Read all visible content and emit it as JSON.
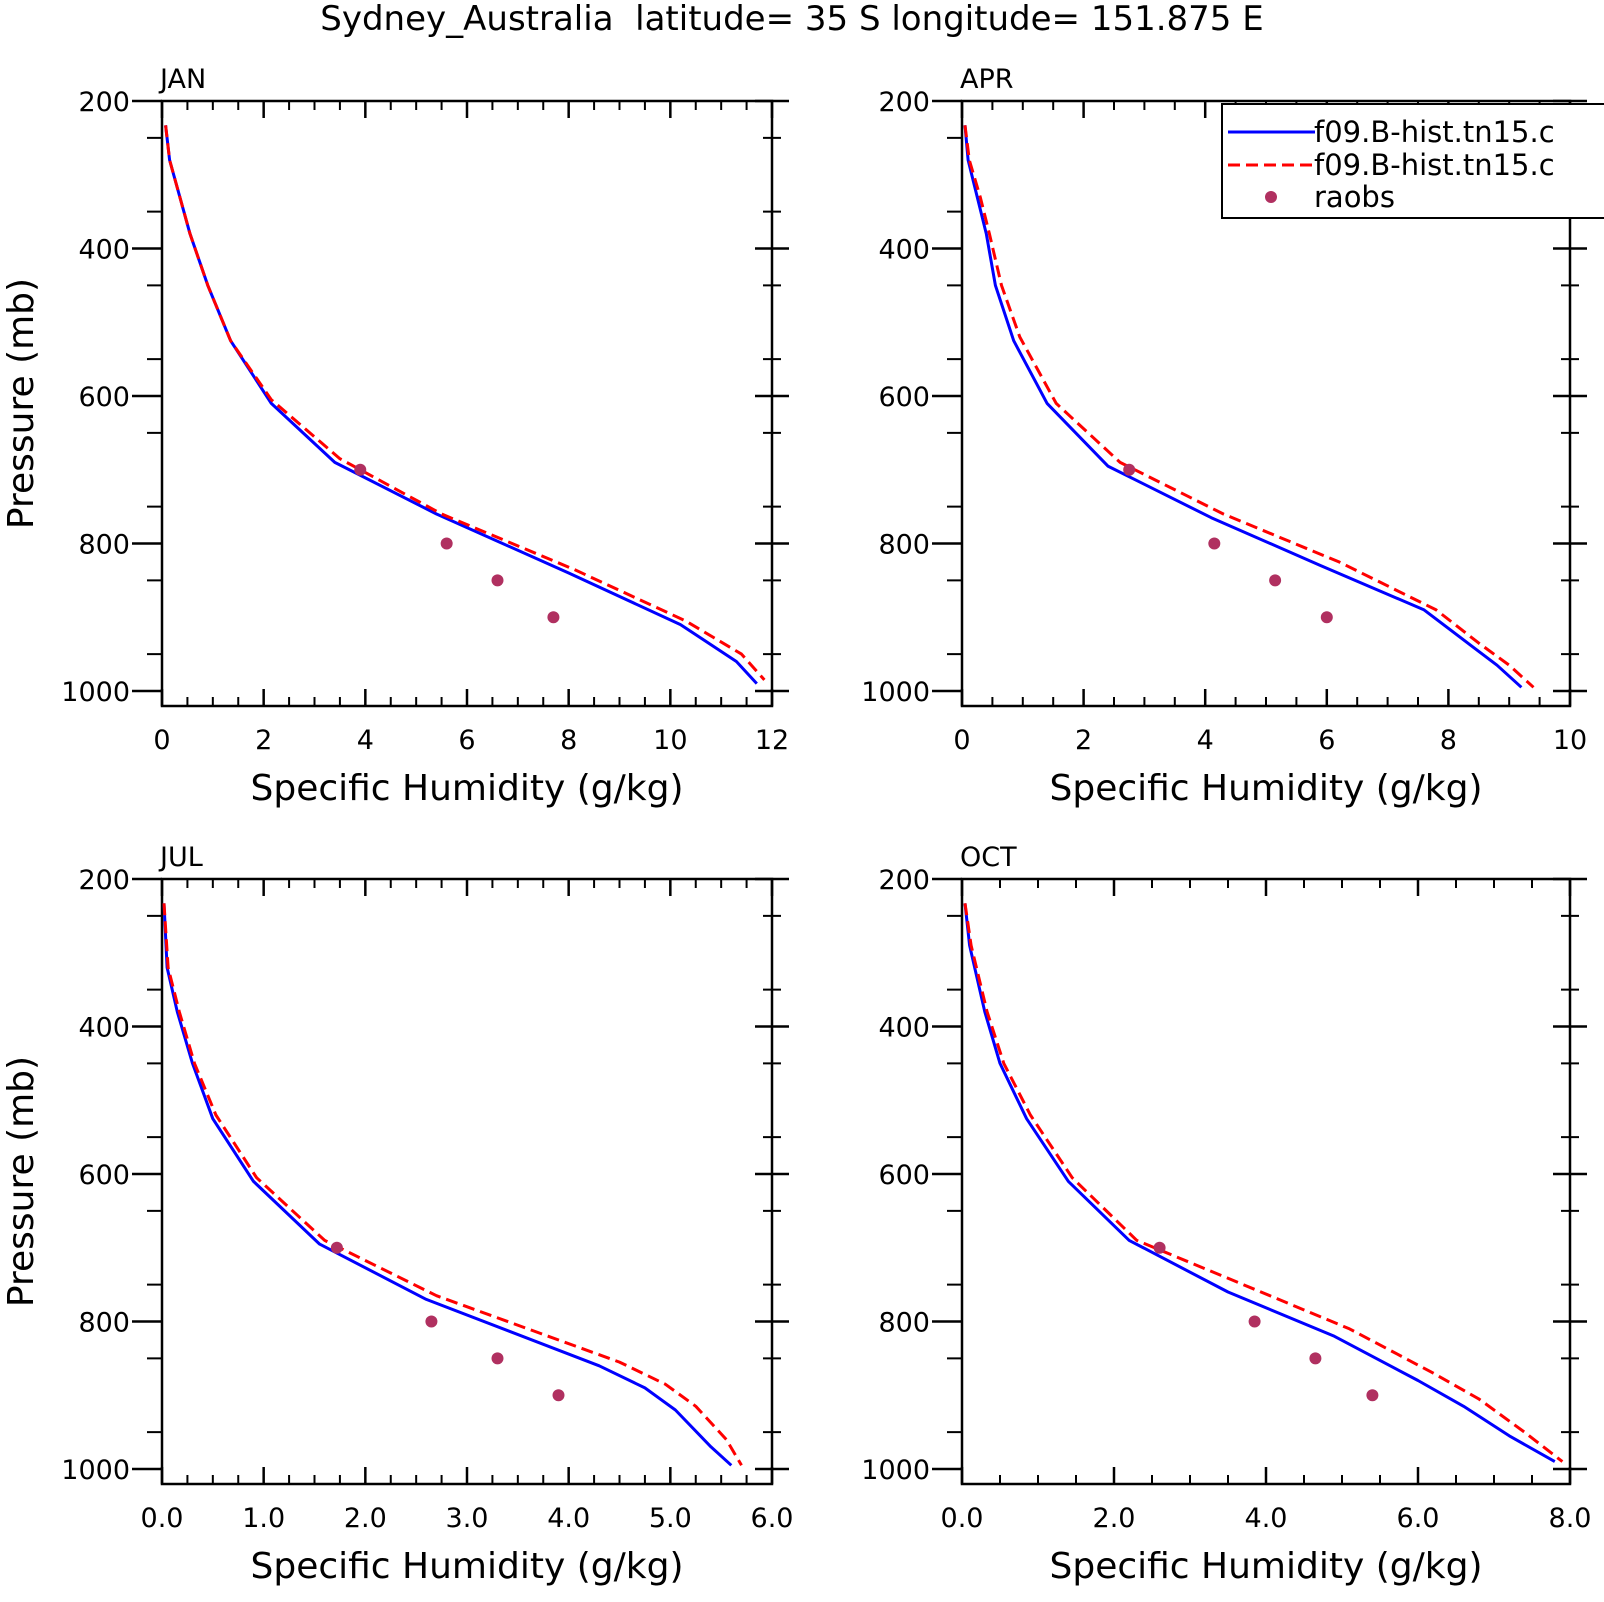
{
  "figure_title": "Sydney_Australia  latitude= 35 S longitude= 151.875 E",
  "legend": {
    "entries": [
      {
        "label": "f09.B-hist.tn15.c",
        "style": "solid",
        "color": "#0000ff"
      },
      {
        "label": "f09.B-hist.tn15.c",
        "style": "dashed",
        "color": "#ff0000"
      },
      {
        "label": "raobs",
        "style": "marker",
        "color": "#b03060"
      }
    ]
  },
  "chart_data": [
    {
      "type": "line",
      "title": "JAN",
      "xlabel": "Specific Humidity (g/kg)",
      "ylabel": "Pressure (mb)",
      "xlim": [
        0,
        12
      ],
      "ylim": [
        1000,
        200
      ],
      "y_inverted": true,
      "xticks": [
        0,
        2,
        4,
        6,
        8,
        10,
        12
      ],
      "xtick_labels": [
        "0",
        "2",
        "4",
        "6",
        "8",
        "10",
        "12"
      ],
      "yticks": [
        200,
        400,
        600,
        800,
        1000
      ],
      "ytick_labels": [
        "200",
        "400",
        "600",
        "800",
        "1000"
      ],
      "series": [
        {
          "style": "solid",
          "color": "#0000ff",
          "x": [
            0.07,
            0.15,
            0.35,
            0.55,
            0.9,
            1.35,
            2.15,
            3.4,
            5.4,
            8.0,
            10.2,
            11.3,
            11.7
          ],
          "y": [
            233,
            280,
            330,
            380,
            450,
            525,
            610,
            690,
            760,
            840,
            910,
            960,
            990
          ]
        },
        {
          "style": "dashed",
          "color": "#ff0000",
          "x": [
            0.07,
            0.15,
            0.35,
            0.55,
            0.9,
            1.35,
            2.15,
            3.5,
            5.5,
            8.1,
            10.3,
            11.4,
            11.85
          ],
          "y": [
            233,
            280,
            330,
            380,
            450,
            525,
            605,
            685,
            760,
            835,
            905,
            950,
            985
          ]
        },
        {
          "style": "marker",
          "color": "#b03060",
          "x": [
            3.9,
            5.6,
            6.6,
            7.7
          ],
          "y": [
            700,
            800,
            850,
            900
          ]
        }
      ]
    },
    {
      "type": "line",
      "title": "APR",
      "xlabel": "Specific Humidity (g/kg)",
      "ylabel": "",
      "xlim": [
        0,
        10
      ],
      "ylim": [
        1000,
        200
      ],
      "y_inverted": true,
      "xticks": [
        0,
        2,
        4,
        6,
        8,
        10
      ],
      "xtick_labels": [
        "0",
        "2",
        "4",
        "6",
        "8",
        "10"
      ],
      "yticks": [
        200,
        400,
        600,
        800,
        1000
      ],
      "ytick_labels": [
        "200",
        "400",
        "600",
        "800",
        "1000"
      ],
      "series": [
        {
          "style": "solid",
          "color": "#0000ff",
          "x": [
            0.05,
            0.1,
            0.25,
            0.4,
            0.55,
            0.85,
            1.4,
            2.4,
            4.1,
            5.9,
            7.6,
            8.4,
            8.8,
            9.2
          ],
          "y": [
            233,
            280,
            330,
            380,
            450,
            525,
            610,
            695,
            765,
            830,
            890,
            940,
            965,
            995
          ]
        },
        {
          "style": "dashed",
          "color": "#ff0000",
          "x": [
            0.05,
            0.12,
            0.3,
            0.45,
            0.65,
            0.95,
            1.55,
            2.6,
            4.3,
            6.2,
            7.8,
            8.5,
            9.0,
            9.4
          ],
          "y": [
            233,
            280,
            330,
            380,
            450,
            520,
            610,
            690,
            760,
            825,
            890,
            935,
            965,
            995
          ]
        },
        {
          "style": "marker",
          "color": "#b03060",
          "x": [
            2.75,
            4.15,
            5.15,
            6.0
          ],
          "y": [
            700,
            800,
            850,
            900
          ]
        }
      ]
    },
    {
      "type": "line",
      "title": "JUL",
      "xlabel": "Specific Humidity (g/kg)",
      "ylabel": "Pressure (mb)",
      "xlim": [
        0,
        6
      ],
      "ylim": [
        1000,
        200
      ],
      "y_inverted": true,
      "xticks": [
        0,
        1,
        2,
        3,
        4,
        5,
        6
      ],
      "xtick_labels": [
        "0.0",
        "1.0",
        "2.0",
        "3.0",
        "4.0",
        "5.0",
        "6.0"
      ],
      "yticks": [
        200,
        400,
        600,
        800,
        1000
      ],
      "ytick_labels": [
        "200",
        "400",
        "600",
        "800",
        "1000"
      ],
      "series": [
        {
          "style": "solid",
          "color": "#0000ff",
          "x": [
            0.02,
            0.05,
            0.15,
            0.3,
            0.5,
            0.9,
            1.55,
            2.6,
            4.3,
            4.75,
            5.05,
            5.4,
            5.6
          ],
          "y": [
            233,
            320,
            380,
            450,
            525,
            610,
            695,
            770,
            860,
            890,
            920,
            970,
            995
          ]
        },
        {
          "style": "dashed",
          "color": "#ff0000",
          "x": [
            0.02,
            0.06,
            0.17,
            0.32,
            0.53,
            0.93,
            1.6,
            2.7,
            4.5,
            4.95,
            5.25,
            5.55,
            5.7
          ],
          "y": [
            233,
            320,
            380,
            450,
            520,
            605,
            690,
            765,
            855,
            885,
            915,
            960,
            995
          ]
        },
        {
          "style": "marker",
          "color": "#b03060",
          "x": [
            1.72,
            2.65,
            3.3,
            3.9
          ],
          "y": [
            700,
            800,
            850,
            900
          ]
        }
      ]
    },
    {
      "type": "line",
      "title": "OCT",
      "xlabel": "Specific Humidity (g/kg)",
      "ylabel": "",
      "xlim": [
        0,
        8
      ],
      "ylim": [
        1000,
        200
      ],
      "y_inverted": true,
      "xticks": [
        0,
        2,
        4,
        6,
        8
      ],
      "xtick_labels": [
        "0.0",
        "2.0",
        "4.0",
        "6.0",
        "8.0"
      ],
      "yticks": [
        200,
        400,
        600,
        800,
        1000
      ],
      "ytick_labels": [
        "200",
        "400",
        "600",
        "800",
        "1000"
      ],
      "series": [
        {
          "style": "solid",
          "color": "#0000ff",
          "x": [
            0.04,
            0.1,
            0.3,
            0.5,
            0.85,
            1.4,
            2.2,
            3.5,
            4.9,
            6.0,
            6.6,
            7.2,
            7.8
          ],
          "y": [
            233,
            290,
            380,
            450,
            525,
            610,
            690,
            760,
            820,
            880,
            915,
            955,
            990
          ]
        },
        {
          "style": "dashed",
          "color": "#ff0000",
          "x": [
            0.04,
            0.12,
            0.33,
            0.55,
            0.9,
            1.45,
            2.3,
            3.7,
            5.1,
            6.2,
            6.8,
            7.4,
            7.9
          ],
          "y": [
            233,
            290,
            380,
            450,
            520,
            605,
            690,
            750,
            810,
            870,
            905,
            950,
            990
          ]
        },
        {
          "style": "marker",
          "color": "#b03060",
          "x": [
            2.6,
            3.85,
            4.65,
            5.4
          ],
          "y": [
            700,
            800,
            850,
            900
          ]
        }
      ]
    }
  ]
}
